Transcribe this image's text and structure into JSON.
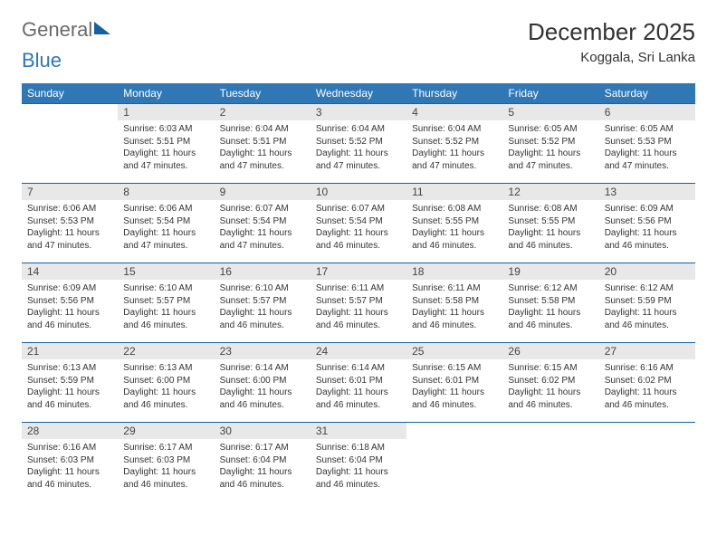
{
  "logo": {
    "text1": "General",
    "text2": "Blue"
  },
  "title": "December 2025",
  "location": "Koggala, Sri Lanka",
  "colors": {
    "header_bg": "#2f77b5",
    "header_text": "#ffffff",
    "daynum_bg": "#e8e8e8",
    "border": "#1463a0",
    "logo_gray": "#6a6a6a",
    "logo_blue": "#2f77b5"
  },
  "day_headers": [
    "Sunday",
    "Monday",
    "Tuesday",
    "Wednesday",
    "Thursday",
    "Friday",
    "Saturday"
  ],
  "weeks": [
    [
      null,
      {
        "n": "1",
        "sr": "Sunrise: 6:03 AM",
        "ss": "Sunset: 5:51 PM",
        "d1": "Daylight: 11 hours",
        "d2": "and 47 minutes."
      },
      {
        "n": "2",
        "sr": "Sunrise: 6:04 AM",
        "ss": "Sunset: 5:51 PM",
        "d1": "Daylight: 11 hours",
        "d2": "and 47 minutes."
      },
      {
        "n": "3",
        "sr": "Sunrise: 6:04 AM",
        "ss": "Sunset: 5:52 PM",
        "d1": "Daylight: 11 hours",
        "d2": "and 47 minutes."
      },
      {
        "n": "4",
        "sr": "Sunrise: 6:04 AM",
        "ss": "Sunset: 5:52 PM",
        "d1": "Daylight: 11 hours",
        "d2": "and 47 minutes."
      },
      {
        "n": "5",
        "sr": "Sunrise: 6:05 AM",
        "ss": "Sunset: 5:52 PM",
        "d1": "Daylight: 11 hours",
        "d2": "and 47 minutes."
      },
      {
        "n": "6",
        "sr": "Sunrise: 6:05 AM",
        "ss": "Sunset: 5:53 PM",
        "d1": "Daylight: 11 hours",
        "d2": "and 47 minutes."
      }
    ],
    [
      {
        "n": "7",
        "sr": "Sunrise: 6:06 AM",
        "ss": "Sunset: 5:53 PM",
        "d1": "Daylight: 11 hours",
        "d2": "and 47 minutes."
      },
      {
        "n": "8",
        "sr": "Sunrise: 6:06 AM",
        "ss": "Sunset: 5:54 PM",
        "d1": "Daylight: 11 hours",
        "d2": "and 47 minutes."
      },
      {
        "n": "9",
        "sr": "Sunrise: 6:07 AM",
        "ss": "Sunset: 5:54 PM",
        "d1": "Daylight: 11 hours",
        "d2": "and 47 minutes."
      },
      {
        "n": "10",
        "sr": "Sunrise: 6:07 AM",
        "ss": "Sunset: 5:54 PM",
        "d1": "Daylight: 11 hours",
        "d2": "and 46 minutes."
      },
      {
        "n": "11",
        "sr": "Sunrise: 6:08 AM",
        "ss": "Sunset: 5:55 PM",
        "d1": "Daylight: 11 hours",
        "d2": "and 46 minutes."
      },
      {
        "n": "12",
        "sr": "Sunrise: 6:08 AM",
        "ss": "Sunset: 5:55 PM",
        "d1": "Daylight: 11 hours",
        "d2": "and 46 minutes."
      },
      {
        "n": "13",
        "sr": "Sunrise: 6:09 AM",
        "ss": "Sunset: 5:56 PM",
        "d1": "Daylight: 11 hours",
        "d2": "and 46 minutes."
      }
    ],
    [
      {
        "n": "14",
        "sr": "Sunrise: 6:09 AM",
        "ss": "Sunset: 5:56 PM",
        "d1": "Daylight: 11 hours",
        "d2": "and 46 minutes."
      },
      {
        "n": "15",
        "sr": "Sunrise: 6:10 AM",
        "ss": "Sunset: 5:57 PM",
        "d1": "Daylight: 11 hours",
        "d2": "and 46 minutes."
      },
      {
        "n": "16",
        "sr": "Sunrise: 6:10 AM",
        "ss": "Sunset: 5:57 PM",
        "d1": "Daylight: 11 hours",
        "d2": "and 46 minutes."
      },
      {
        "n": "17",
        "sr": "Sunrise: 6:11 AM",
        "ss": "Sunset: 5:57 PM",
        "d1": "Daylight: 11 hours",
        "d2": "and 46 minutes."
      },
      {
        "n": "18",
        "sr": "Sunrise: 6:11 AM",
        "ss": "Sunset: 5:58 PM",
        "d1": "Daylight: 11 hours",
        "d2": "and 46 minutes."
      },
      {
        "n": "19",
        "sr": "Sunrise: 6:12 AM",
        "ss": "Sunset: 5:58 PM",
        "d1": "Daylight: 11 hours",
        "d2": "and 46 minutes."
      },
      {
        "n": "20",
        "sr": "Sunrise: 6:12 AM",
        "ss": "Sunset: 5:59 PM",
        "d1": "Daylight: 11 hours",
        "d2": "and 46 minutes."
      }
    ],
    [
      {
        "n": "21",
        "sr": "Sunrise: 6:13 AM",
        "ss": "Sunset: 5:59 PM",
        "d1": "Daylight: 11 hours",
        "d2": "and 46 minutes."
      },
      {
        "n": "22",
        "sr": "Sunrise: 6:13 AM",
        "ss": "Sunset: 6:00 PM",
        "d1": "Daylight: 11 hours",
        "d2": "and 46 minutes."
      },
      {
        "n": "23",
        "sr": "Sunrise: 6:14 AM",
        "ss": "Sunset: 6:00 PM",
        "d1": "Daylight: 11 hours",
        "d2": "and 46 minutes."
      },
      {
        "n": "24",
        "sr": "Sunrise: 6:14 AM",
        "ss": "Sunset: 6:01 PM",
        "d1": "Daylight: 11 hours",
        "d2": "and 46 minutes."
      },
      {
        "n": "25",
        "sr": "Sunrise: 6:15 AM",
        "ss": "Sunset: 6:01 PM",
        "d1": "Daylight: 11 hours",
        "d2": "and 46 minutes."
      },
      {
        "n": "26",
        "sr": "Sunrise: 6:15 AM",
        "ss": "Sunset: 6:02 PM",
        "d1": "Daylight: 11 hours",
        "d2": "and 46 minutes."
      },
      {
        "n": "27",
        "sr": "Sunrise: 6:16 AM",
        "ss": "Sunset: 6:02 PM",
        "d1": "Daylight: 11 hours",
        "d2": "and 46 minutes."
      }
    ],
    [
      {
        "n": "28",
        "sr": "Sunrise: 6:16 AM",
        "ss": "Sunset: 6:03 PM",
        "d1": "Daylight: 11 hours",
        "d2": "and 46 minutes."
      },
      {
        "n": "29",
        "sr": "Sunrise: 6:17 AM",
        "ss": "Sunset: 6:03 PM",
        "d1": "Daylight: 11 hours",
        "d2": "and 46 minutes."
      },
      {
        "n": "30",
        "sr": "Sunrise: 6:17 AM",
        "ss": "Sunset: 6:04 PM",
        "d1": "Daylight: 11 hours",
        "d2": "and 46 minutes."
      },
      {
        "n": "31",
        "sr": "Sunrise: 6:18 AM",
        "ss": "Sunset: 6:04 PM",
        "d1": "Daylight: 11 hours",
        "d2": "and 46 minutes."
      },
      null,
      null,
      null
    ]
  ]
}
